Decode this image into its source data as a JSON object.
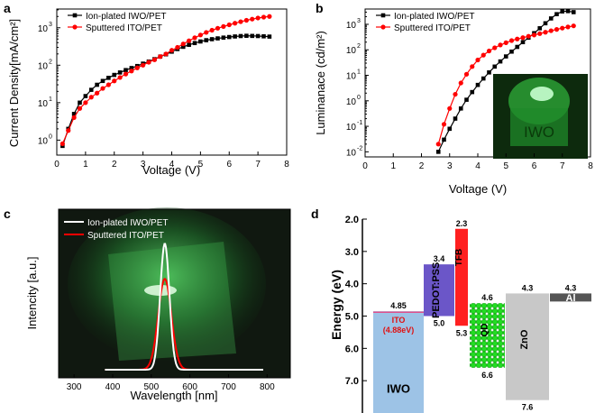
{
  "panel_labels": [
    "a",
    "b",
    "c",
    "d"
  ],
  "chart_data": [
    {
      "panel": "a",
      "type": "line",
      "xlabel": "Voltage (V)",
      "ylabel": "Current Density[mA/cm²]",
      "xlim": [
        0,
        8
      ],
      "ylim_log": [
        -0.4,
        3.5
      ],
      "yscale": "log",
      "xticks": [
        "0",
        "1",
        "2",
        "3",
        "4",
        "5",
        "6",
        "7",
        "8"
      ],
      "yticks": [
        {
          "exp": 0
        },
        {
          "exp": 1
        },
        {
          "exp": 2
        },
        {
          "exp": 3
        }
      ],
      "legend": [
        "Ion-plated IWO/PET",
        "Sputtered ITO/PET"
      ],
      "series": [
        {
          "name": "Ion-plated IWO/PET",
          "color": "#000000",
          "marker": "square",
          "x": [
            0.2,
            0.4,
            0.6,
            0.8,
            1.0,
            1.2,
            1.4,
            1.6,
            1.8,
            2.0,
            2.2,
            2.4,
            2.6,
            2.8,
            3.0,
            3.2,
            3.4,
            3.6,
            3.8,
            4.0,
            4.2,
            4.4,
            4.6,
            4.8,
            5.0,
            5.2,
            5.4,
            5.6,
            5.8,
            6.0,
            6.2,
            6.4,
            6.6,
            6.8,
            7.0,
            7.2,
            7.4
          ],
          "y": [
            0.7,
            2.0,
            5.0,
            10,
            15,
            22,
            30,
            38,
            46,
            55,
            64,
            74,
            84,
            95,
            110,
            125,
            145,
            170,
            195,
            230,
            270,
            310,
            350,
            390,
            430,
            465,
            495,
            520,
            545,
            565,
            585,
            600,
            610,
            605,
            600,
            590,
            580
          ]
        },
        {
          "name": "Sputtered ITO/PET",
          "color": "#ff0000",
          "marker": "circle",
          "x": [
            0.2,
            0.4,
            0.6,
            0.8,
            1.0,
            1.2,
            1.4,
            1.6,
            1.8,
            2.0,
            2.2,
            2.4,
            2.6,
            2.8,
            3.0,
            3.2,
            3.4,
            3.6,
            3.8,
            4.0,
            4.2,
            4.4,
            4.6,
            4.8,
            5.0,
            5.2,
            5.4,
            5.6,
            5.8,
            6.0,
            6.2,
            6.4,
            6.6,
            6.8,
            7.0,
            7.2,
            7.4
          ],
          "y": [
            0.8,
            1.8,
            4.0,
            7.0,
            10,
            14,
            18,
            24,
            30,
            38,
            47,
            58,
            70,
            85,
            100,
            120,
            140,
            170,
            200,
            250,
            300,
            370,
            450,
            540,
            640,
            750,
            860,
            970,
            1080,
            1200,
            1320,
            1450,
            1580,
            1700,
            1820,
            1920,
            2000
          ]
        }
      ]
    },
    {
      "panel": "b",
      "type": "line",
      "xlabel": "Voltage (V)",
      "ylabel": "Luminanace (cd/m²)",
      "xlim": [
        0,
        8
      ],
      "ylim_log": [
        -2.2,
        3.6
      ],
      "yscale": "log",
      "xticks": [
        "0",
        "1",
        "2",
        "3",
        "4",
        "5",
        "6",
        "7",
        "8"
      ],
      "yticks": [
        {
          "exp": -2
        },
        {
          "exp": -1
        },
        {
          "exp": 0
        },
        {
          "exp": 1
        },
        {
          "exp": 2
        },
        {
          "exp": 3
        }
      ],
      "legend": [
        "Ion-plated IWO/PET",
        "Sputtered ITO/PET"
      ],
      "inset_text": "IWO",
      "series": [
        {
          "name": "Ion-plated IWO/PET",
          "color": "#000000",
          "marker": "square",
          "x": [
            2.6,
            2.8,
            3.0,
            3.2,
            3.4,
            3.6,
            3.8,
            4.0,
            4.2,
            4.4,
            4.6,
            4.8,
            5.0,
            5.2,
            5.4,
            5.6,
            5.8,
            6.0,
            6.2,
            6.4,
            6.6,
            6.8,
            7.0,
            7.2,
            7.4
          ],
          "y": [
            0.01,
            0.03,
            0.08,
            0.2,
            0.5,
            1.1,
            2.2,
            4.2,
            7.5,
            13,
            22,
            35,
            55,
            85,
            130,
            200,
            300,
            450,
            700,
            1100,
            1700,
            2500,
            3200,
            3300,
            3000
          ]
        },
        {
          "name": "Sputtered ITO/PET",
          "color": "#ff0000",
          "marker": "circle",
          "x": [
            2.6,
            2.8,
            3.0,
            3.2,
            3.4,
            3.6,
            3.8,
            4.0,
            4.2,
            4.4,
            4.6,
            4.8,
            5.0,
            5.2,
            5.4,
            5.6,
            5.8,
            6.0,
            6.2,
            6.4,
            6.6,
            6.8,
            7.0,
            7.2,
            7.4
          ],
          "y": [
            0.02,
            0.12,
            0.5,
            1.8,
            5,
            11,
            22,
            40,
            62,
            90,
            120,
            155,
            190,
            230,
            265,
            300,
            340,
            380,
            430,
            490,
            560,
            630,
            710,
            790,
            870
          ]
        }
      ]
    },
    {
      "panel": "c",
      "type": "line",
      "xlabel": "Wavelength [nm]",
      "ylabel": "Intencity [a.u.]",
      "xlim": [
        260,
        860
      ],
      "ylim": [
        0,
        1.05
      ],
      "xticks": [
        "300",
        "400",
        "500",
        "600",
        "700",
        "800"
      ],
      "legend": [
        "Ion-plated IWO/PET",
        "Sputtered ITO/PET"
      ],
      "series": [
        {
          "name": "Ion-plated IWO/PET",
          "color": "#ffffff",
          "peak_nm": 535,
          "fwhm_nm": 28,
          "peak": 1.0,
          "range": [
            380,
            790
          ]
        },
        {
          "name": "Sputtered ITO/PET",
          "color": "#ff0000",
          "peak_nm": 535,
          "fwhm_nm": 40,
          "peak": 0.72,
          "range": [
            380,
            790
          ]
        }
      ]
    },
    {
      "panel": "d",
      "type": "diagram",
      "ylabel": "Energy (eV)",
      "ylim": [
        2.0,
        8.0
      ],
      "yticks": [
        "2.0",
        "3.0",
        "4.0",
        "5.0",
        "6.0",
        "7.0"
      ],
      "layers": [
        {
          "name": "IWO",
          "top": 4.85,
          "bottom": 8.0,
          "color": "#9dc3e6",
          "top_label": "4.85",
          "bottom_label": ""
        },
        {
          "name": "PEDOT:PSS",
          "top": 3.4,
          "bottom": 5.0,
          "color": "#6b56c8",
          "top_label": "3.4",
          "bottom_label": "5.0"
        },
        {
          "name": "TFB",
          "top": 2.3,
          "bottom": 5.3,
          "color": "#ff2020",
          "top_label": "2.3",
          "bottom_label": "5.3"
        },
        {
          "name": "QD",
          "top": 4.6,
          "bottom": 6.6,
          "color": "#22dd22",
          "top_label": "4.6",
          "bottom_label": "6.6"
        },
        {
          "name": "ZnO",
          "top": 4.3,
          "bottom": 7.6,
          "color": "#c8c8c8",
          "top_label": "4.3",
          "bottom_label": "7.6"
        },
        {
          "name": "Al",
          "top": 4.3,
          "bottom": 4.55,
          "color": "#555555",
          "top_label": "4.3",
          "bottom_label": ""
        }
      ],
      "ito_line": {
        "energy": 4.88,
        "label": "ITO",
        "sub_label": "(4.88eV)",
        "color": "#e0508a"
      }
    }
  ]
}
